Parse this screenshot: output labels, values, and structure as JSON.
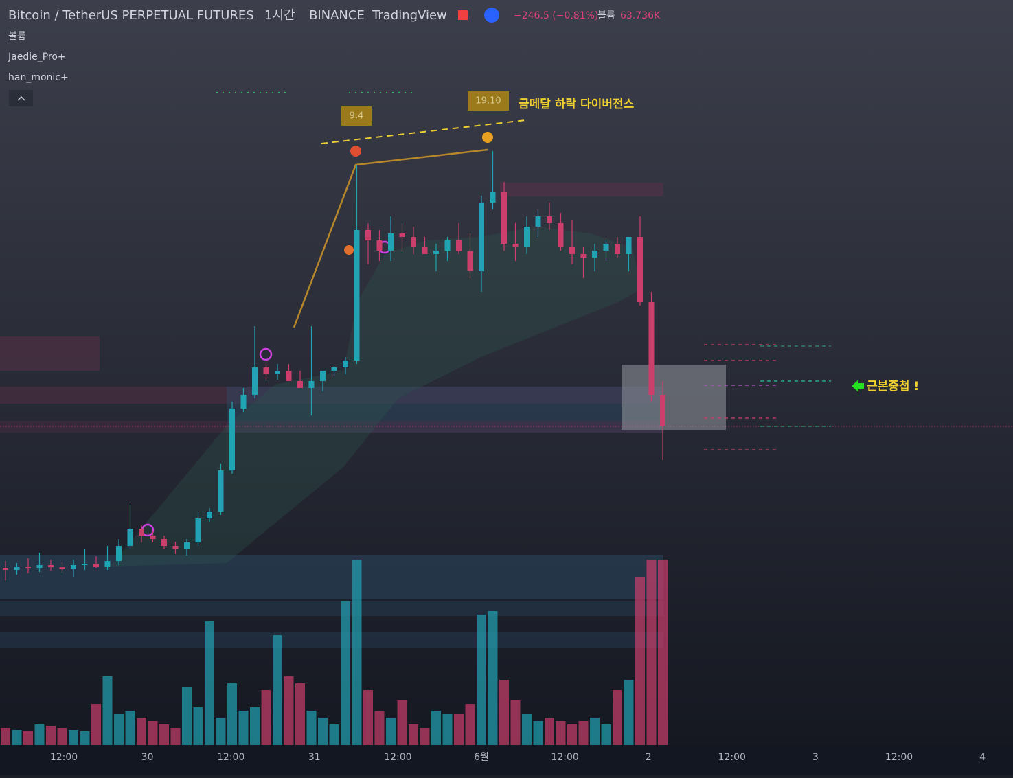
{
  "header": {
    "symbol": "Bitcoin / TetherUS PERPETUAL FUTURES",
    "interval": "1시간",
    "exchange": "BINANCE",
    "source": "TradingView",
    "change": "−246.5 (−0.81%)",
    "volume_label": "볼륨",
    "volume_value": "63.736K",
    "indicators": [
      "볼륨",
      "Jaedie_Pro+",
      "han_monic+"
    ]
  },
  "annotations": {
    "tag_a": "9,4",
    "tag_b": "19,10",
    "divergence": "금메달 하락 다이버전스",
    "overlap": "근본중첩 !"
  },
  "chart_data": {
    "type": "candlestick",
    "xticks": [
      "12:00",
      "30",
      "12:00",
      "31",
      "12:00",
      "6월",
      "12:00",
      "2",
      "12:00",
      "3",
      "12:00",
      "4"
    ],
    "up_color": "#22a3b3",
    "down_color": "#cc3f6c",
    "ylim": [
      0,
      1085
    ],
    "open": [
      258,
      255,
      260,
      258,
      262,
      259,
      256,
      262,
      264,
      260,
      268,
      290,
      315,
      305,
      300,
      290,
      285,
      295,
      330,
      340,
      400,
      490,
      510,
      550,
      540,
      545,
      530,
      520,
      530,
      545,
      550,
      560,
      750,
      735,
      720,
      745,
      740,
      725,
      715,
      720,
      735,
      720,
      690,
      790,
      805,
      730,
      725,
      755,
      770,
      760,
      725,
      715,
      710,
      720,
      730,
      715,
      740,
      645,
      510
    ],
    "high": [
      268,
      265,
      272,
      280,
      270,
      266,
      270,
      285,
      275,
      290,
      300,
      350,
      320,
      312,
      305,
      296,
      300,
      340,
      345,
      410,
      500,
      520,
      610,
      560,
      555,
      555,
      545,
      610,
      540,
      552,
      565,
      845,
      760,
      750,
      770,
      760,
      755,
      740,
      730,
      740,
      760,
      745,
      800,
      865,
      820,
      760,
      770,
      780,
      790,
      775,
      765,
      725,
      730,
      735,
      740,
      735,
      770,
      660,
      530
    ],
    "low": [
      240,
      248,
      250,
      252,
      254,
      250,
      245,
      255,
      258,
      255,
      262,
      285,
      295,
      295,
      285,
      278,
      276,
      290,
      325,
      335,
      395,
      485,
      505,
      530,
      532,
      535,
      520,
      480,
      515,
      538,
      540,
      555,
      700,
      705,
      705,
      718,
      715,
      715,
      690,
      705,
      715,
      680,
      660,
      780,
      720,
      705,
      715,
      740,
      750,
      720,
      700,
      680,
      690,
      705,
      710,
      690,
      640,
      500,
      415
    ],
    "close": [
      255,
      260,
      258,
      262,
      259,
      256,
      262,
      264,
      260,
      268,
      290,
      315,
      305,
      300,
      290,
      285,
      295,
      330,
      340,
      400,
      490,
      510,
      550,
      540,
      545,
      530,
      520,
      530,
      545,
      550,
      560,
      750,
      735,
      720,
      745,
      740,
      725,
      715,
      720,
      735,
      720,
      690,
      790,
      805,
      730,
      725,
      755,
      770,
      760,
      725,
      715,
      710,
      720,
      730,
      715,
      740,
      645,
      510,
      465
    ],
    "volume": [
      25,
      22,
      20,
      30,
      28,
      25,
      22,
      20,
      60,
      100,
      45,
      50,
      40,
      35,
      30,
      25,
      85,
      55,
      180,
      40,
      90,
      50,
      55,
      80,
      160,
      100,
      90,
      50,
      40,
      30,
      210,
      270,
      80,
      50,
      40,
      65,
      30,
      25,
      50,
      45,
      45,
      60,
      190,
      195,
      95,
      65,
      45,
      35,
      40,
      35,
      30,
      35,
      40,
      30,
      80,
      95,
      245,
      270,
      270
    ]
  }
}
